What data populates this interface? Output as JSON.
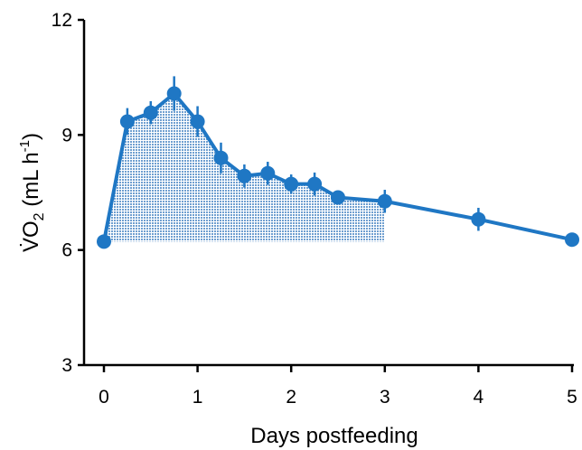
{
  "chart_data": {
    "type": "line",
    "xlabel": "Days postfeeding",
    "ylabel_prefix": "V̇O",
    "ylabel_subscript": "2",
    "ylabel_unit": " (mL h",
    "ylabel_superscript": "-1",
    "ylabel_close": ")",
    "xlim": [
      0,
      5
    ],
    "ylim": [
      3,
      12
    ],
    "x_ticks": [
      "0",
      "1",
      "2",
      "3",
      "4",
      "5"
    ],
    "y_ticks": [
      "3",
      "6",
      "9",
      "12"
    ],
    "shaded_region": {
      "x_from": 0,
      "x_to": 3,
      "baseline": 6.22
    },
    "series": [
      {
        "x": [
          0,
          0.25,
          0.5,
          0.75,
          1.0,
          1.25,
          1.5,
          1.75,
          2.0,
          2.25,
          2.5,
          3.0,
          4.0,
          5.0
        ],
        "values": [
          6.22,
          9.35,
          9.58,
          10.08,
          9.35,
          8.4,
          7.93,
          8.0,
          7.72,
          7.72,
          7.37,
          7.27,
          6.8,
          6.27
        ],
        "error": [
          0.0,
          0.35,
          0.3,
          0.45,
          0.4,
          0.4,
          0.3,
          0.3,
          0.25,
          0.3,
          0.15,
          0.3,
          0.3,
          0.0
        ]
      }
    ]
  },
  "colors": {
    "series": "#1f77c4",
    "shade": "#8fb4d9",
    "axis": "#000000"
  }
}
